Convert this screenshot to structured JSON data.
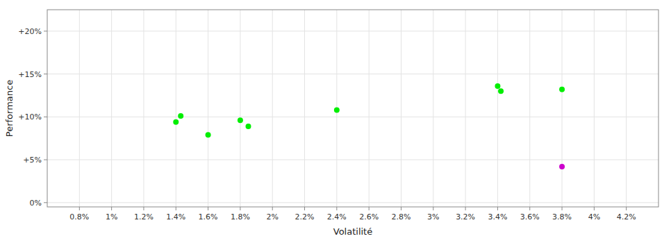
{
  "chart_data": {
    "type": "scatter",
    "x_label": "Volatilité",
    "y_label": "Performance",
    "xlim": [
      0.006,
      0.044
    ],
    "ylim": [
      -0.005,
      0.225
    ],
    "xticks": [
      {
        "value": 0.008,
        "label": "0.8%"
      },
      {
        "value": 0.01,
        "label": "1%"
      },
      {
        "value": 0.012,
        "label": "1.2%"
      },
      {
        "value": 0.014,
        "label": "1.4%"
      },
      {
        "value": 0.016,
        "label": "1.6%"
      },
      {
        "value": 0.018,
        "label": "1.8%"
      },
      {
        "value": 0.02,
        "label": "2%"
      },
      {
        "value": 0.022,
        "label": "2.2%"
      },
      {
        "value": 0.024,
        "label": "2.4%"
      },
      {
        "value": 0.026,
        "label": "2.6%"
      },
      {
        "value": 0.028,
        "label": "2.8%"
      },
      {
        "value": 0.03,
        "label": "3%"
      },
      {
        "value": 0.032,
        "label": "3.2%"
      },
      {
        "value": 0.034,
        "label": "3.4%"
      },
      {
        "value": 0.036,
        "label": "3.6%"
      },
      {
        "value": 0.038,
        "label": "3.8%"
      },
      {
        "value": 0.04,
        "label": "4%"
      },
      {
        "value": 0.042,
        "label": "4.2%"
      }
    ],
    "yticks": [
      {
        "value": 0.0,
        "label": "0%"
      },
      {
        "value": 0.05,
        "label": "+5%"
      },
      {
        "value": 0.1,
        "label": "+10%"
      },
      {
        "value": 0.15,
        "label": "+15%"
      },
      {
        "value": 0.2,
        "label": "+20%"
      }
    ],
    "grid": true,
    "marker": "circle",
    "series": [
      {
        "color": "#00ee00",
        "x": [
          0.014,
          0.0143,
          0.016,
          0.018,
          0.0185,
          0.024,
          0.034,
          0.0342,
          0.038
        ],
        "values": [
          0.094,
          0.101,
          0.079,
          0.096,
          0.089,
          0.108,
          0.136,
          0.13,
          0.132
        ]
      },
      {
        "color": "#cc00cc",
        "x": [
          0.038
        ],
        "values": [
          0.042
        ]
      }
    ]
  }
}
